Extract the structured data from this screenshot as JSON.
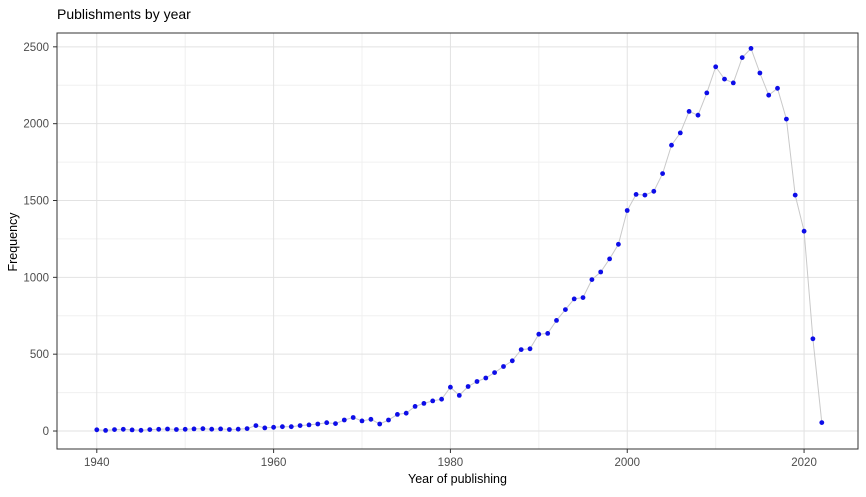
{
  "title": "Publishments by year",
  "chart_data": {
    "type": "line",
    "title": "Publishments by year",
    "xlabel": "Year of publishing",
    "ylabel": "Frequency",
    "legend": "none",
    "grid": true,
    "x_ticks": [
      1940,
      1960,
      1980,
      2000,
      2020
    ],
    "x_minor_ticks": [
      1950,
      1970,
      1990,
      2010
    ],
    "y_ticks": [
      0,
      500,
      1000,
      1500,
      2000,
      2500
    ],
    "y_minor_ticks": [
      250,
      750,
      1250,
      1750,
      2250
    ],
    "xlim": [
      1935.5,
      2026.1
    ],
    "ylim": [
      -117,
      2590
    ],
    "point_color": "#0d0de8",
    "line_color": "#c9c9c9",
    "major_grid_color": "#e2e2e2",
    "minor_grid_color": "#f0f0f0",
    "panel_border_color": "#333333",
    "tick_label_color": "#4d4d4d",
    "x": [
      1940,
      1941,
      1942,
      1943,
      1944,
      1945,
      1946,
      1947,
      1948,
      1949,
      1950,
      1951,
      1952,
      1953,
      1954,
      1955,
      1956,
      1957,
      1958,
      1959,
      1960,
      1961,
      1962,
      1963,
      1964,
      1965,
      1966,
      1967,
      1968,
      1969,
      1970,
      1971,
      1972,
      1973,
      1974,
      1975,
      1976,
      1977,
      1978,
      1979,
      1980,
      1981,
      1982,
      1983,
      1984,
      1985,
      1986,
      1987,
      1988,
      1989,
      1990,
      1991,
      1992,
      1993,
      1994,
      1995,
      1996,
      1997,
      1998,
      1999,
      2000,
      2001,
      2002,
      2003,
      2004,
      2005,
      2006,
      2007,
      2008,
      2009,
      2010,
      2011,
      2012,
      2013,
      2014,
      2015,
      2016,
      2017,
      2018,
      2019,
      2020,
      2021,
      2022
    ],
    "y": [
      8,
      4,
      9,
      11,
      7,
      5,
      9,
      11,
      13,
      10,
      11,
      14,
      15,
      12,
      14,
      10,
      12,
      16,
      35,
      20,
      24,
      28,
      28,
      35,
      40,
      46,
      54,
      48,
      72,
      88,
      66,
      76,
      46,
      72,
      108,
      116,
      160,
      180,
      196,
      207,
      285,
      232,
      290,
      322,
      345,
      380,
      420,
      457,
      530,
      535,
      630,
      635,
      720,
      790,
      860,
      868,
      985,
      1035,
      1120,
      1215,
      1435,
      1540,
      1535,
      1560,
      1675,
      1860,
      1940,
      2080,
      2055,
      2200,
      2370,
      2290,
      2265,
      2430,
      2490,
      2330,
      2185,
      2230,
      2030,
      1535,
      1300,
      600,
      55
    ]
  }
}
